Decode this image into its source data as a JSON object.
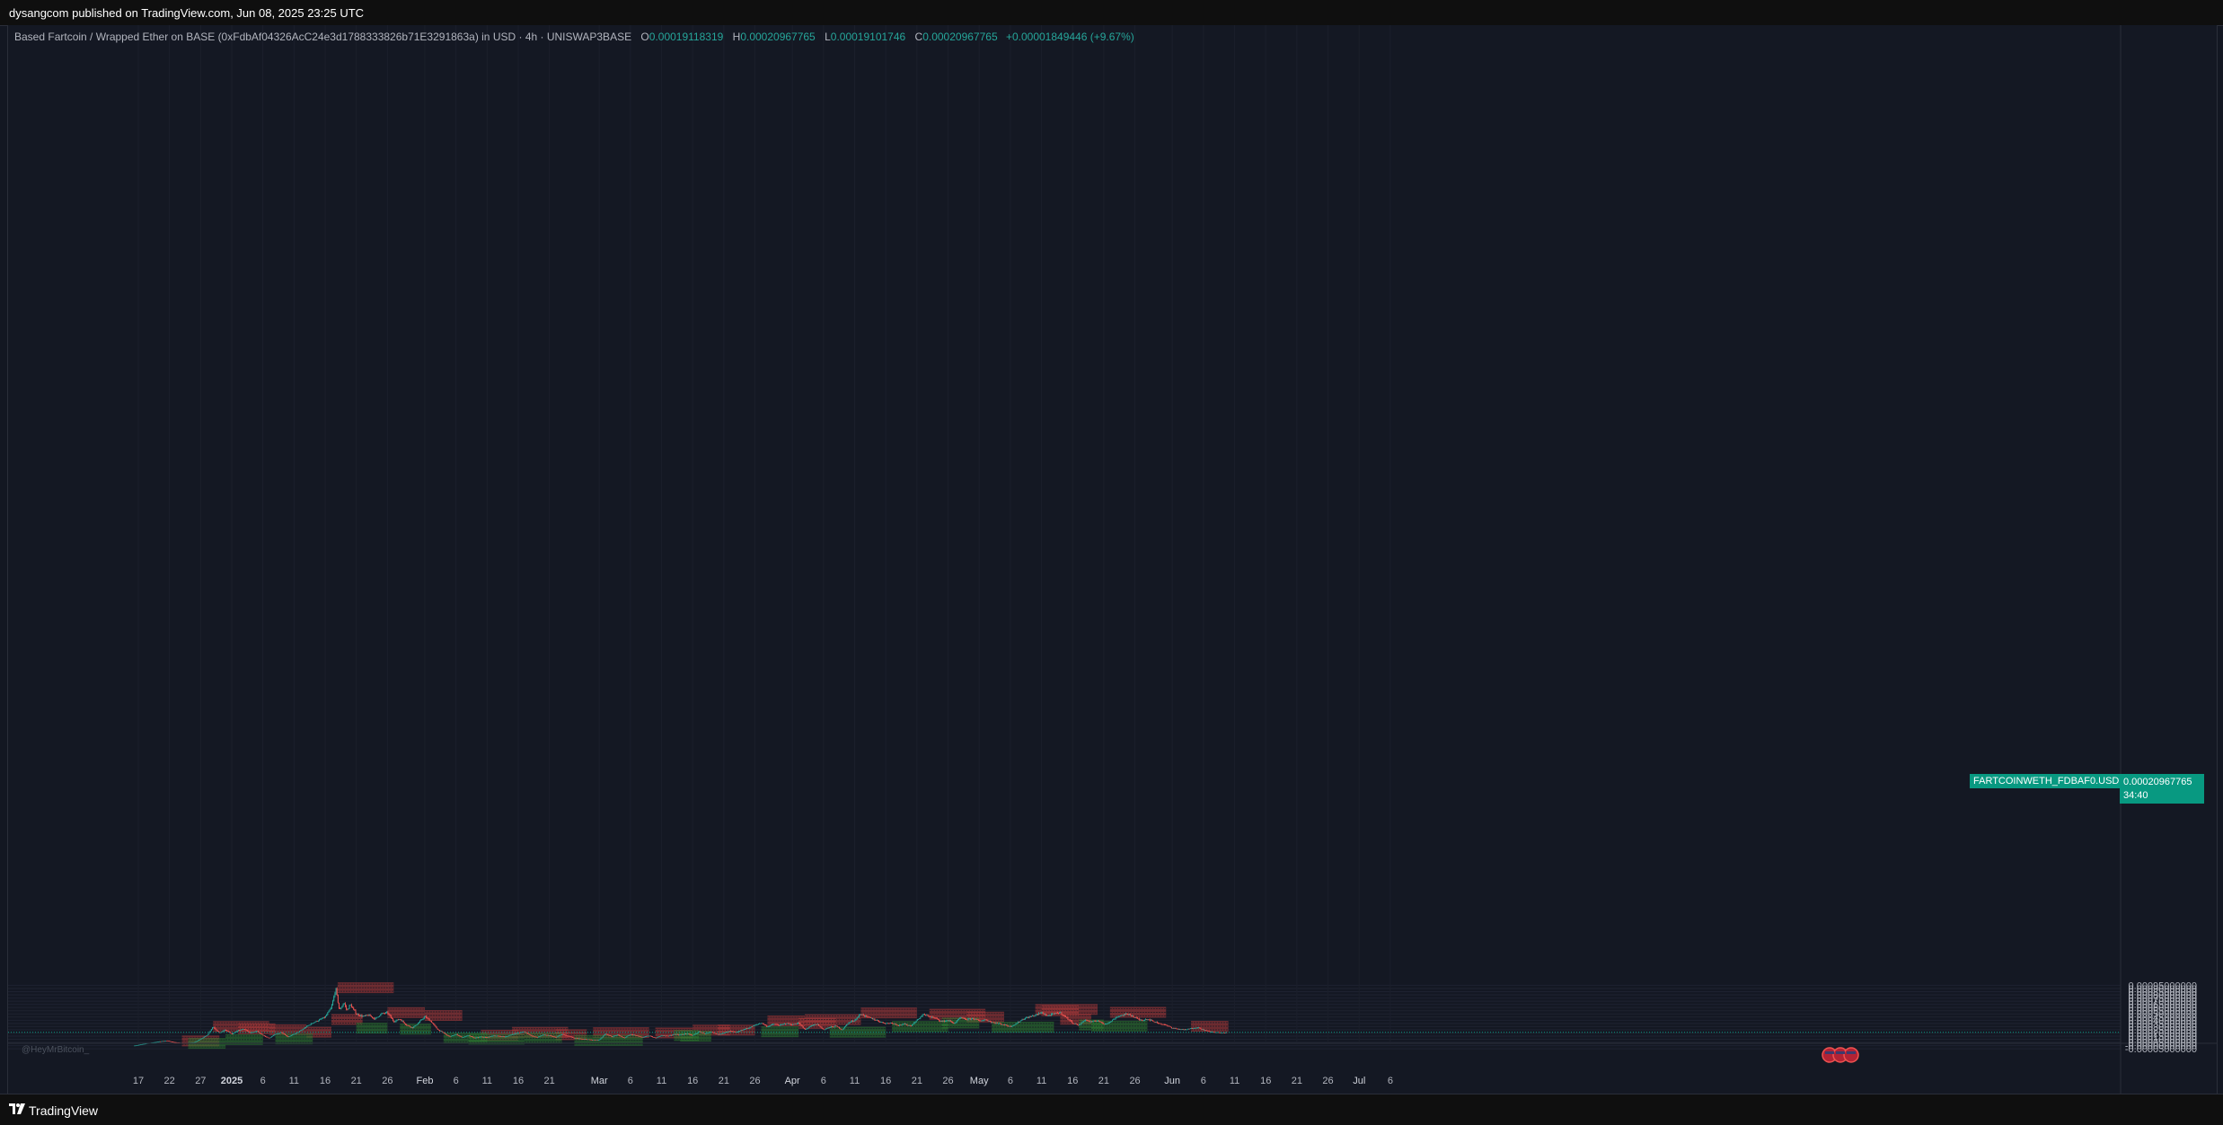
{
  "header": {
    "published": "dysangcom published on TradingView.com, Jun 08, 2025 23:25 UTC"
  },
  "legend": {
    "title": "Based Fartcoin / Wrapped Ether on BASE (0xFdbAf04326AcC24e3d1788333826b71E3291863a) in USD · 4h · UNISWAP3BASE",
    "o_label": "O",
    "o_value": "0.00019118319",
    "h_label": "H",
    "h_value": "0.00020967765",
    "l_label": "L",
    "l_value": "0.00019101746",
    "c_label": "C",
    "c_value": "0.00020967765",
    "change": "+0.00001849446 (+9.67%)"
  },
  "last_price": {
    "symbol_tag": "FARTCOINWETH_FDBAF0.USD",
    "value": "0.00020967765",
    "countdown": "34:40"
  },
  "footer": {
    "brand": "TradingView"
  },
  "watermark": "@HeyMrBitcoin_",
  "colors": {
    "background": "#131722",
    "up": "#26a69a",
    "down": "#ef5350",
    "resistance_zone": "#b23a3a",
    "support_zone": "#2e7d32",
    "accent": "#089981"
  },
  "chart_data": {
    "type": "candlestick",
    "timeframe": "4h",
    "y_axis": {
      "ticks": [
        "0.00095000000",
        "0.00090000000",
        "0.00085000000",
        "0.00080000000",
        "0.00075000000",
        "0.00070000000",
        "0.00065000000",
        "0.00060000000",
        "0.00055000000",
        "0.00050000000",
        "0.00045000000",
        "0.00040000000",
        "0.00035000000",
        "0.00030000000",
        "0.00025000000",
        "0.00020000000",
        "0.00015000000",
        "0.00010000000",
        "0.00005000000",
        "-0.00000000000",
        "-0.00005000000"
      ],
      "range": [
        -5e-05,
        0.00095
      ]
    },
    "x_axis": {
      "ticks": [
        {
          "label": "17",
          "day": -15
        },
        {
          "label": "22",
          "day": -10
        },
        {
          "label": "27",
          "day": -5
        },
        {
          "label": "2025",
          "day": 0
        },
        {
          "label": "6",
          "day": 5
        },
        {
          "label": "11",
          "day": 10
        },
        {
          "label": "16",
          "day": 15
        },
        {
          "label": "21",
          "day": 20
        },
        {
          "label": "26",
          "day": 25
        },
        {
          "label": "Feb",
          "day": 31
        },
        {
          "label": "6",
          "day": 36
        },
        {
          "label": "11",
          "day": 41
        },
        {
          "label": "16",
          "day": 46
        },
        {
          "label": "21",
          "day": 51
        },
        {
          "label": "Mar",
          "day": 59
        },
        {
          "label": "6",
          "day": 64
        },
        {
          "label": "11",
          "day": 69
        },
        {
          "label": "16",
          "day": 74
        },
        {
          "label": "21",
          "day": 79
        },
        {
          "label": "26",
          "day": 84
        },
        {
          "label": "Apr",
          "day": 90
        },
        {
          "label": "6",
          "day": 95
        },
        {
          "label": "11",
          "day": 100
        },
        {
          "label": "16",
          "day": 105
        },
        {
          "label": "21",
          "day": 110
        },
        {
          "label": "26",
          "day": 115
        },
        {
          "label": "May",
          "day": 120
        },
        {
          "label": "6",
          "day": 125
        },
        {
          "label": "11",
          "day": 130
        },
        {
          "label": "16",
          "day": 135
        },
        {
          "label": "21",
          "day": 140
        },
        {
          "label": "26",
          "day": 145
        },
        {
          "label": "Jun",
          "day": 151
        },
        {
          "label": "6",
          "day": 156
        },
        {
          "label": "11",
          "day": 161
        },
        {
          "label": "16",
          "day": 166
        },
        {
          "label": "21",
          "day": 171
        },
        {
          "label": "26",
          "day": 176
        },
        {
          "label": "Jul",
          "day": 181
        },
        {
          "label": "6",
          "day": 186
        }
      ]
    },
    "price_path": [
      [
        -15.6,
        0.0
      ],
      [
        -14,
        3e-05
      ],
      [
        -12,
        6e-05
      ],
      [
        -10.5,
        8e-05
      ],
      [
        -9,
        5e-05
      ],
      [
        -7.5,
        4e-05
      ],
      [
        -6,
        5e-05
      ],
      [
        -4,
        0.00016
      ],
      [
        -3,
        0.0003
      ],
      [
        -2,
        0.0002
      ],
      [
        -1,
        0.00025
      ],
      [
        0,
        0.00018
      ],
      [
        1,
        0.00024
      ],
      [
        2,
        0.00026
      ],
      [
        3,
        0.0002
      ],
      [
        4,
        0.00023
      ],
      [
        5,
        0.00016
      ],
      [
        6,
        0.00012
      ],
      [
        7,
        0.00018
      ],
      [
        8,
        0.00021
      ],
      [
        9,
        0.00014
      ],
      [
        10,
        0.00018
      ],
      [
        11,
        0.00023
      ],
      [
        12,
        0.0003
      ],
      [
        13,
        0.00036
      ],
      [
        14,
        0.0004
      ],
      [
        15,
        0.00045
      ],
      [
        16,
        0.0006
      ],
      [
        16.7,
        0.0009
      ],
      [
        17.3,
        0.00055
      ],
      [
        18,
        0.00068
      ],
      [
        18.5,
        0.00055
      ],
      [
        19,
        0.00065
      ],
      [
        20,
        0.0005
      ],
      [
        21,
        0.00046
      ],
      [
        22,
        0.00048
      ],
      [
        23,
        0.00042
      ],
      [
        24,
        0.0005
      ],
      [
        25,
        0.00052
      ],
      [
        26,
        0.00038
      ],
      [
        27,
        0.00042
      ],
      [
        28,
        0.00033
      ],
      [
        29,
        0.00028
      ],
      [
        30,
        0.00036
      ],
      [
        31,
        0.00046
      ],
      [
        32,
        0.00038
      ],
      [
        33,
        0.00026
      ],
      [
        34,
        0.0002
      ],
      [
        35,
        0.00014
      ],
      [
        36,
        0.00018
      ],
      [
        37,
        0.00013
      ],
      [
        38,
        0.00016
      ],
      [
        39,
        0.00012
      ],
      [
        40,
        0.00014
      ],
      [
        41,
        0.00013
      ],
      [
        42,
        0.00016
      ],
      [
        43,
        0.00015
      ],
      [
        44,
        0.00014
      ],
      [
        45,
        0.00018
      ],
      [
        46,
        0.0002
      ],
      [
        47,
        0.00022
      ],
      [
        48,
        0.00016
      ],
      [
        49,
        0.00013
      ],
      [
        50,
        0.00017
      ],
      [
        51,
        0.00016
      ],
      [
        52,
        0.00013
      ],
      [
        53,
        0.00018
      ],
      [
        54,
        0.00015
      ],
      [
        55,
        0.00012
      ],
      [
        56,
        0.00011
      ],
      [
        57,
        0.0001
      ],
      [
        58,
        9e-05
      ],
      [
        59,
        9e-05
      ],
      [
        60,
        0.00019
      ],
      [
        61,
        0.00014
      ],
      [
        62,
        0.00017
      ],
      [
        63,
        0.00012
      ],
      [
        64,
        0.00018
      ],
      [
        65,
        0.00016
      ],
      [
        66,
        0.00013
      ],
      [
        67,
        0.00016
      ],
      [
        68,
        0.00012
      ],
      [
        69,
        0.00016
      ],
      [
        70,
        0.00015
      ],
      [
        71,
        0.00018
      ],
      [
        72,
        0.00017
      ],
      [
        73,
        0.00019
      ],
      [
        74,
        0.00016
      ],
      [
        75,
        0.00022
      ],
      [
        76,
        0.00019
      ],
      [
        77,
        0.00021
      ],
      [
        78,
        0.00018
      ],
      [
        79,
        0.0002
      ],
      [
        80,
        0.00023
      ],
      [
        81,
        0.00021
      ],
      [
        82,
        0.00025
      ],
      [
        83,
        0.00028
      ],
      [
        84,
        0.00032
      ],
      [
        85,
        0.00036
      ],
      [
        86,
        0.0003
      ],
      [
        87,
        0.00034
      ],
      [
        88,
        0.00032
      ],
      [
        89,
        0.00035
      ],
      [
        90,
        0.00033
      ],
      [
        91,
        0.00036
      ],
      [
        92,
        0.00025
      ],
      [
        93,
        0.00031
      ],
      [
        94,
        0.00034
      ],
      [
        95,
        0.00025
      ],
      [
        96,
        0.00029
      ],
      [
        97,
        0.00031
      ],
      [
        98,
        0.00025
      ],
      [
        99,
        0.00036
      ],
      [
        100,
        0.0004
      ],
      [
        101,
        0.0005
      ],
      [
        102,
        0.00045
      ],
      [
        103,
        0.00042
      ],
      [
        104,
        0.00038
      ],
      [
        105,
        0.00035
      ],
      [
        106,
        0.00036
      ],
      [
        107,
        0.00032
      ],
      [
        108,
        0.00034
      ],
      [
        109,
        0.00031
      ],
      [
        110,
        0.0004
      ],
      [
        111,
        0.00049
      ],
      [
        112,
        0.00046
      ],
      [
        113,
        0.00043
      ],
      [
        114,
        0.00038
      ],
      [
        115,
        0.0004
      ],
      [
        116,
        0.00035
      ],
      [
        117,
        0.00044
      ],
      [
        118,
        0.00041
      ],
      [
        119,
        0.00043
      ],
      [
        120,
        0.00039
      ],
      [
        121,
        0.00041
      ],
      [
        122,
        0.00037
      ],
      [
        123,
        0.00035
      ],
      [
        124,
        0.00033
      ],
      [
        125,
        0.0003
      ],
      [
        126,
        0.00035
      ],
      [
        127,
        0.00042
      ],
      [
        128,
        0.00045
      ],
      [
        129,
        0.00048
      ],
      [
        130,
        0.00052
      ],
      [
        131,
        0.00047
      ],
      [
        132,
        0.0005
      ],
      [
        133,
        0.00052
      ],
      [
        134,
        0.00044
      ],
      [
        135,
        0.00036
      ],
      [
        136,
        0.00032
      ],
      [
        137,
        0.00041
      ],
      [
        138,
        0.00037
      ],
      [
        139,
        0.0004
      ],
      [
        140,
        0.00034
      ],
      [
        141,
        0.00037
      ],
      [
        142,
        0.00045
      ],
      [
        143,
        0.00048
      ],
      [
        144,
        0.0005
      ],
      [
        145,
        0.00044
      ],
      [
        146,
        0.0004
      ],
      [
        147,
        0.00042
      ],
      [
        148,
        0.00038
      ],
      [
        149,
        0.00035
      ],
      [
        150,
        0.00032
      ],
      [
        151,
        0.00028
      ],
      [
        152,
        0.00026
      ],
      [
        153,
        0.00025
      ],
      [
        154,
        0.00027
      ],
      [
        155,
        0.00029
      ],
      [
        156,
        0.00025
      ],
      [
        157,
        0.00022
      ],
      [
        158,
        0.00021
      ],
      [
        159,
        0.0002
      ],
      [
        159.8,
        0.00021
      ]
    ],
    "resistance_zones": [
      {
        "x0": 17,
        "x1": 26,
        "y": 0.000912
      },
      {
        "x0": -8,
        "x1": -2,
        "y": 7.4e-05
      },
      {
        "x0": -3,
        "x1": 6,
        "y": 0.000302
      },
      {
        "x0": 1,
        "x1": 7,
        "y": 0.000265
      },
      {
        "x0": 6,
        "x1": 12,
        "y": 0.00025
      },
      {
        "x0": 12,
        "x1": 16,
        "y": 0.000212
      },
      {
        "x0": 16,
        "x1": 21,
        "y": 0.000412
      },
      {
        "x0": 25,
        "x1": 31,
        "y": 0.00052
      },
      {
        "x0": 31,
        "x1": 37,
        "y": 0.000475
      },
      {
        "x0": 45,
        "x1": 54,
        "y": 0.00021
      },
      {
        "x0": 40,
        "x1": 46,
        "y": 0.000165
      },
      {
        "x0": 52,
        "x1": 57,
        "y": 0.000172
      },
      {
        "x0": 58,
        "x1": 67,
        "y": 0.000205
      },
      {
        "x0": 68,
        "x1": 74,
        "y": 0.0002
      },
      {
        "x0": 74,
        "x1": 80,
        "y": 0.000245
      },
      {
        "x0": 78,
        "x1": 84,
        "y": 0.000245
      },
      {
        "x0": 86,
        "x1": 92,
        "y": 0.00039
      },
      {
        "x0": 91,
        "x1": 97,
        "y": 0.00035
      },
      {
        "x0": 92,
        "x1": 101,
        "y": 0.00041
      },
      {
        "x0": 101,
        "x1": 110,
        "y": 0.000515
      },
      {
        "x0": 112,
        "x1": 121,
        "y": 0.000495
      },
      {
        "x0": 118,
        "x1": 124,
        "y": 0.00045
      },
      {
        "x0": 129,
        "x1": 139,
        "y": 0.00057
      },
      {
        "x0": 130,
        "x1": 136,
        "y": 0.00055
      },
      {
        "x0": 133,
        "x1": 138,
        "y": 0.000415
      },
      {
        "x0": 141,
        "x1": 150,
        "y": 0.000525
      },
      {
        "x0": 154,
        "x1": 160,
        "y": 0.000305
      }
    ],
    "support_zones": [
      {
        "x0": -7,
        "x1": -1,
        "y": 3.5e-05
      },
      {
        "x0": -1,
        "x1": 5,
        "y": 9.5e-05
      },
      {
        "x0": 7,
        "x1": 13,
        "y": 0.000105
      },
      {
        "x0": 20,
        "x1": 25,
        "y": 0.000275
      },
      {
        "x0": 27,
        "x1": 32,
        "y": 0.00026
      },
      {
        "x0": 34,
        "x1": 41,
        "y": 0.000118
      },
      {
        "x0": 38,
        "x1": 47,
        "y": 0.000102
      },
      {
        "x0": 47,
        "x1": 53,
        "y": 0.000117
      },
      {
        "x0": 55,
        "x1": 66,
        "y": 8.2e-05
      },
      {
        "x0": 72,
        "x1": 77,
        "y": 0.000148
      },
      {
        "x0": 71,
        "x1": 75,
        "y": 0.00016
      },
      {
        "x0": 85,
        "x1": 91,
        "y": 0.000218
      },
      {
        "x0": 96,
        "x1": 105,
        "y": 0.000212
      },
      {
        "x0": 106,
        "x1": 115,
        "y": 0.000302
      },
      {
        "x0": 114,
        "x1": 120,
        "y": 0.000355
      },
      {
        "x0": 122,
        "x1": 132,
        "y": 0.000292
      },
      {
        "x0": 136,
        "x1": 140,
        "y": 0.000325
      },
      {
        "x0": 138,
        "x1": 147,
        "y": 0.000308
      }
    ]
  }
}
